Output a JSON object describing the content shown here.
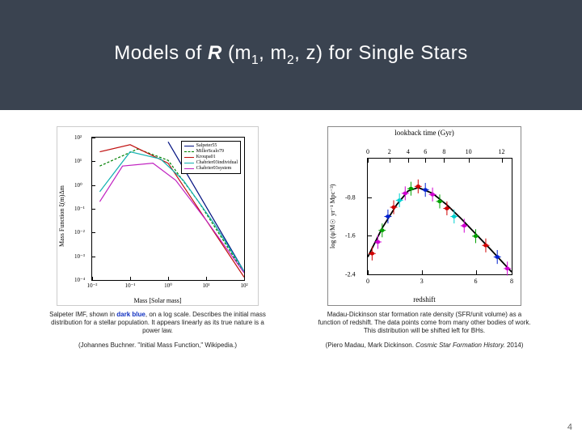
{
  "slide": {
    "title_prefix": "Models of ",
    "title_rate": "R",
    "title_args_open": " (m",
    "title_args_mid": ", m",
    "title_args_z": ", z) for Single Stars",
    "page_number": "4",
    "title_bg": "#3a4350",
    "title_fg": "#ffffff"
  },
  "left_plot": {
    "xlabel": "Mass [Solar mass]",
    "ylabel": "Mass Function ξ(m)Δm",
    "xticks": [
      {
        "pos": 0.0,
        "label": "10⁻²"
      },
      {
        "pos": 0.25,
        "label": "10⁻¹"
      },
      {
        "pos": 0.5,
        "label": "10⁰"
      },
      {
        "pos": 0.75,
        "label": "10¹"
      },
      {
        "pos": 1.0,
        "label": "10²"
      }
    ],
    "yticks": [
      {
        "pos": 0.0,
        "label": "10⁻⁴"
      },
      {
        "pos": 0.167,
        "label": "10⁻³"
      },
      {
        "pos": 0.333,
        "label": "10⁻²"
      },
      {
        "pos": 0.5,
        "label": "10⁻¹"
      },
      {
        "pos": 0.667,
        "label": "10⁰"
      },
      {
        "pos": 0.833,
        "label": "10¹"
      },
      {
        "pos": 1.0,
        "label": "10²"
      }
    ],
    "series": [
      {
        "label": "Salpeter55",
        "color": "#001080",
        "dash": "none",
        "points": [
          [
            0.5,
            0.97
          ],
          [
            1.0,
            0.06
          ]
        ]
      },
      {
        "label": "MillerScalo79",
        "color": "#008000",
        "dash": "dashed",
        "points": [
          [
            0.05,
            0.8
          ],
          [
            0.3,
            0.92
          ],
          [
            0.5,
            0.84
          ],
          [
            0.7,
            0.55
          ],
          [
            0.85,
            0.3
          ],
          [
            1.0,
            0.05
          ]
        ]
      },
      {
        "label": "Kroupa01",
        "color": "#c01010",
        "dash": "none",
        "points": [
          [
            0.05,
            0.9
          ],
          [
            0.25,
            0.95
          ],
          [
            0.5,
            0.82
          ],
          [
            1.0,
            0.02
          ]
        ]
      },
      {
        "label": "Chabrier03individual",
        "color": "#10b0b0",
        "dash": "none",
        "points": [
          [
            0.05,
            0.62
          ],
          [
            0.25,
            0.9
          ],
          [
            0.45,
            0.85
          ],
          [
            0.6,
            0.7
          ],
          [
            0.8,
            0.4
          ],
          [
            1.0,
            0.06
          ]
        ]
      },
      {
        "label": "Chabrier03system",
        "color": "#c020c0",
        "dash": "none",
        "points": [
          [
            0.05,
            0.55
          ],
          [
            0.2,
            0.8
          ],
          [
            0.4,
            0.82
          ],
          [
            0.55,
            0.7
          ],
          [
            0.75,
            0.42
          ],
          [
            1.0,
            0.05
          ]
        ]
      }
    ],
    "caption_a": "Salpeter IMF, shown in ",
    "caption_dark": "dark blue",
    "caption_b": ", on a log scale. Describes the initial mass distribution for a stellar population. It appears linearly as its true nature is a power law.",
    "credit": "(Johannes Buchner. \"Initial Mass Function,\" Wikipedia.)"
  },
  "right_plot": {
    "top_label": "lookback time (Gyr)",
    "top_ticks": [
      {
        "pos": 0.0,
        "label": "0"
      },
      {
        "pos": 0.15,
        "label": "2"
      },
      {
        "pos": 0.28,
        "label": "4"
      },
      {
        "pos": 0.4,
        "label": "6"
      },
      {
        "pos": 0.53,
        "label": "8"
      },
      {
        "pos": 0.7,
        "label": "10"
      },
      {
        "pos": 0.93,
        "label": "12"
      }
    ],
    "xlabel": "redshift",
    "xticks": [
      {
        "pos": 0.0,
        "label": "0"
      },
      {
        "pos": 0.375,
        "label": "3"
      },
      {
        "pos": 0.75,
        "label": "6"
      },
      {
        "pos": 1.0,
        "label": "8"
      }
    ],
    "ylabel": "log (ψ/M☉ yr⁻¹ Mpc⁻³)",
    "yticks": [
      {
        "pos": 0.0,
        "label": "-2.4"
      },
      {
        "pos": 0.333,
        "label": "-1.6"
      },
      {
        "pos": 0.667,
        "label": "-0.8"
      }
    ],
    "curve": {
      "color": "#000000",
      "points": [
        [
          0.0,
          0.15
        ],
        [
          0.1,
          0.4
        ],
        [
          0.2,
          0.6
        ],
        [
          0.28,
          0.72
        ],
        [
          0.35,
          0.75
        ],
        [
          0.45,
          0.7
        ],
        [
          0.55,
          0.6
        ],
        [
          0.65,
          0.48
        ],
        [
          0.75,
          0.35
        ],
        [
          0.85,
          0.22
        ],
        [
          1.0,
          0.02
        ]
      ]
    },
    "data_points": [
      {
        "x": 0.03,
        "y": 0.18,
        "c": "#d00000"
      },
      {
        "x": 0.07,
        "y": 0.28,
        "c": "#d000d0"
      },
      {
        "x": 0.1,
        "y": 0.38,
        "c": "#00a000"
      },
      {
        "x": 0.14,
        "y": 0.5,
        "c": "#0020d0"
      },
      {
        "x": 0.18,
        "y": 0.58,
        "c": "#d00000"
      },
      {
        "x": 0.22,
        "y": 0.64,
        "c": "#00d0d0"
      },
      {
        "x": 0.26,
        "y": 0.7,
        "c": "#d000d0"
      },
      {
        "x": 0.3,
        "y": 0.74,
        "c": "#00a000"
      },
      {
        "x": 0.35,
        "y": 0.76,
        "c": "#d00000"
      },
      {
        "x": 0.4,
        "y": 0.73,
        "c": "#0020d0"
      },
      {
        "x": 0.45,
        "y": 0.69,
        "c": "#d000d0"
      },
      {
        "x": 0.5,
        "y": 0.63,
        "c": "#00a000"
      },
      {
        "x": 0.55,
        "y": 0.57,
        "c": "#d00000"
      },
      {
        "x": 0.6,
        "y": 0.5,
        "c": "#00d0d0"
      },
      {
        "x": 0.67,
        "y": 0.42,
        "c": "#d000d0"
      },
      {
        "x": 0.75,
        "y": 0.33,
        "c": "#00a000"
      },
      {
        "x": 0.82,
        "y": 0.25,
        "c": "#d00000"
      },
      {
        "x": 0.9,
        "y": 0.15,
        "c": "#0020d0"
      },
      {
        "x": 0.97,
        "y": 0.05,
        "c": "#d000d0"
      }
    ],
    "err_x": 0.025,
    "err_y": 0.06,
    "caption": "Madau-Dickinson star formation rate density (SFR/unit volume) as a function of redshift. The data points come from many other bodies of work. This distribution will be shifted left for BHs.",
    "credit_a": "(Piero Madau, Mark Dickinson. ",
    "credit_it": "Cosmic Star Formation History.",
    "credit_b": " 2014)"
  }
}
